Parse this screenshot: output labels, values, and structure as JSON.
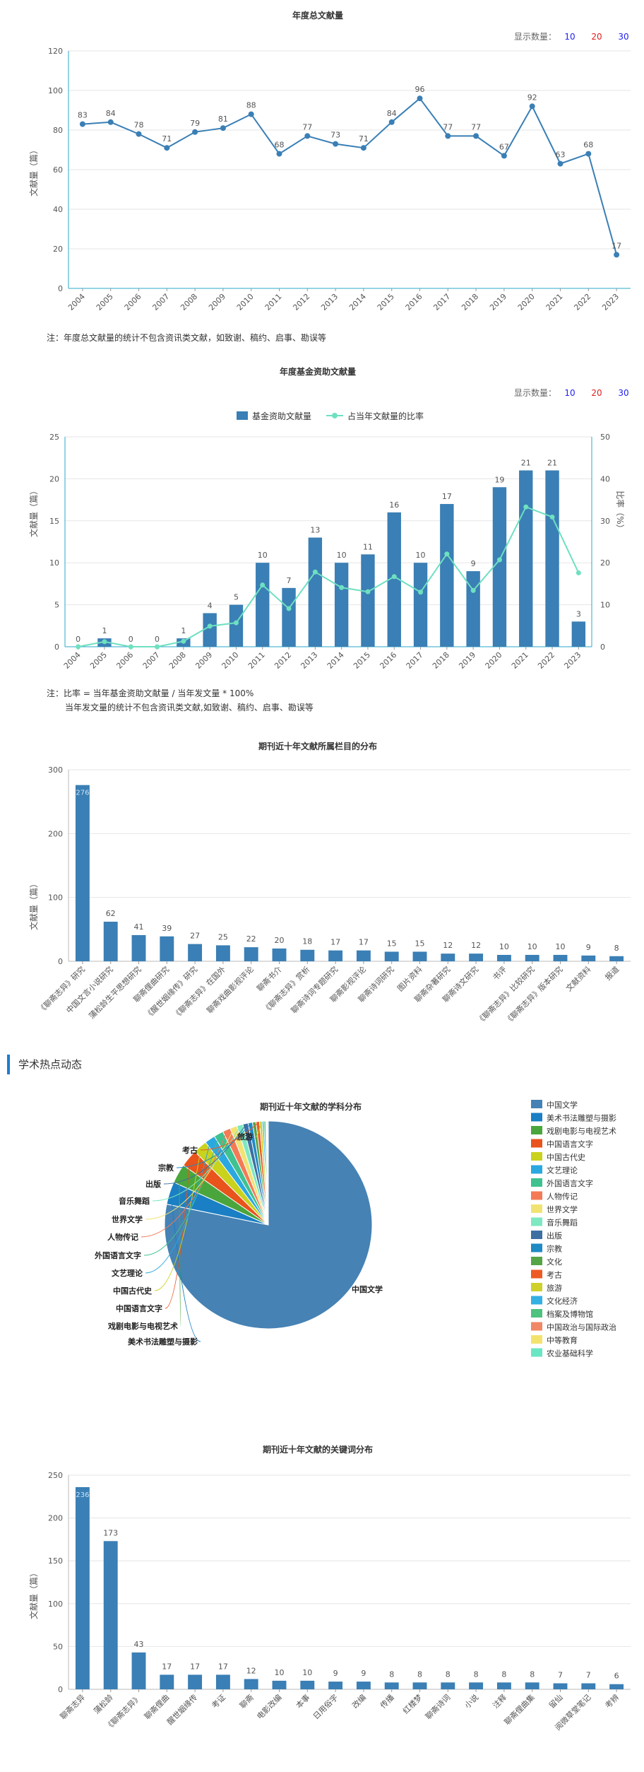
{
  "chart_data": [
    {
      "type": "line",
      "title": "年度总文献量",
      "display_count": {
        "label": "显示数量：",
        "options": [
          "10",
          "20",
          "30"
        ]
      },
      "ylabel": "文献量（篇）",
      "x": [
        "2004",
        "2005",
        "2006",
        "2007",
        "2008",
        "2009",
        "2010",
        "2011",
        "2012",
        "2013",
        "2014",
        "2015",
        "2016",
        "2017",
        "2018",
        "2019",
        "2020",
        "2021",
        "2022",
        "2023"
      ],
      "values": [
        83,
        84,
        78,
        71,
        79,
        81,
        88,
        68,
        77,
        73,
        71,
        84,
        96,
        77,
        77,
        67,
        92,
        63,
        68,
        17
      ],
      "ylim": [
        0,
        120
      ],
      "yticks": [
        "0",
        "20",
        "40",
        "60",
        "80",
        "100",
        "120"
      ],
      "color": "#3a7fb5",
      "note": "注：年度总文献量的统计不包含资讯类文献，如致谢、稿约、启事、勘误等"
    },
    {
      "type": "bar+line",
      "title": "年度基金资助文献量",
      "display_count": {
        "label": "显示数量：",
        "options": [
          "10",
          "20",
          "30"
        ]
      },
      "legend": {
        "bar": "基金资助文献量",
        "line": "占当年文献量的比率"
      },
      "ylabel": "文献量（篇）",
      "y2label": "比率（%）",
      "x": [
        "2004",
        "2005",
        "2006",
        "2007",
        "2008",
        "2009",
        "2010",
        "2011",
        "2012",
        "2013",
        "2014",
        "2015",
        "2016",
        "2017",
        "2018",
        "2019",
        "2020",
        "2021",
        "2022",
        "2023"
      ],
      "bar_values": [
        0,
        1,
        0,
        0,
        1,
        4,
        5,
        10,
        7,
        13,
        10,
        11,
        16,
        10,
        17,
        9,
        19,
        21,
        21,
        3
      ],
      "line_values": [
        0,
        1.2,
        0,
        0,
        1.3,
        4.9,
        5.7,
        14.7,
        9.1,
        17.8,
        14.1,
        13.1,
        16.7,
        13.0,
        22.1,
        13.4,
        20.7,
        33.3,
        30.9,
        17.6
      ],
      "ylim": [
        0,
        25
      ],
      "y2lim": [
        0,
        50
      ],
      "yticks": [
        "0",
        "5",
        "10",
        "15",
        "20",
        "25"
      ],
      "y2ticks": [
        "0",
        "10",
        "20",
        "30",
        "40",
        "50"
      ],
      "bar_color": "#3a7fb5",
      "line_color": "#6ee0c0",
      "note": [
        "注：比率 = 当年基金资助文献量 / 当年发文量 * 100%",
        "当年发文量的统计不包含资讯类文献,如致谢、稿约、启事、勘误等"
      ]
    },
    {
      "type": "bar",
      "title": "期刊近十年文献所属栏目的分布",
      "ylabel": "文献量（篇）",
      "categories": [
        "《聊斋志异》研究",
        "中国文言小说研究",
        "蒲松龄生平思想研究",
        "聊斋俚曲研究",
        "《醒世姻缘传》研究",
        "《聊斋志异》在国外",
        "聊斋戏曲影视评论",
        "聊斋书介",
        "《聊斋志异》赏析",
        "聊斋诗词专题研究",
        "聊斋影视评论",
        "聊斋诗词研究",
        "图片资料",
        "聊斋杂著研究",
        "聊斋诗文研究",
        "书评",
        "《聊斋志异》比较研究",
        "《聊斋志异》版本研究",
        "文献资料",
        "报道"
      ],
      "values": [
        276,
        62,
        41,
        39,
        27,
        25,
        22,
        20,
        18,
        17,
        17,
        15,
        15,
        12,
        12,
        10,
        10,
        10,
        9,
        8
      ],
      "ylim": [
        0,
        300
      ],
      "yticks": [
        "0",
        "100",
        "200",
        "300"
      ],
      "color": "#3a7fb5"
    },
    {
      "type": "pie",
      "title": "期刊近十年文献的学科分布",
      "labels": [
        "中国文学",
        "美术书法雕塑与摄影",
        "戏剧电影与电视艺术",
        "中国语言文字",
        "中国古代史",
        "文艺理论",
        "外国语言文字",
        "人物传记",
        "世界文学",
        "音乐舞蹈",
        "出版",
        "宗教",
        "文化",
        "考古",
        "旅游",
        "文化经济",
        "档案及博物馆",
        "中国政治与国际政治",
        "中等教育",
        "农业基础科学"
      ],
      "values": [
        574,
        26,
        22,
        20,
        16,
        12,
        11,
        9,
        8,
        7,
        6,
        5,
        4,
        4,
        3,
        2,
        2,
        1,
        1,
        1
      ],
      "colors": [
        "#4682b4",
        "#1a7fc4",
        "#4aa63c",
        "#e9531c",
        "#c9d21c",
        "#2ba8e0",
        "#3fc28f",
        "#f47a55",
        "#f1e373",
        "#7de8c2",
        "#3e6fa3",
        "#1f8ac4",
        "#55a546",
        "#ee5a24",
        "#cfd12a",
        "#35b0e2",
        "#4ec27f",
        "#f08866",
        "#f3e36e",
        "#6be6c4"
      ],
      "outside_labels": [
        "中国文学",
        "美术书法雕塑与摄影",
        "戏剧电影与电视艺术",
        "中国语言文字",
        "中国古代史",
        "文艺理论",
        "外国语言文字",
        "人物传记",
        "世界文学",
        "音乐舞蹈",
        "出版",
        "宗教",
        "考古",
        "旅游"
      ]
    },
    {
      "type": "bar",
      "title": "期刊近十年文献的关键词分布",
      "ylabel": "文献量（篇）",
      "categories": [
        "聊斋志异",
        "蒲松龄",
        "《聊斋志异》",
        "聊斋俚曲",
        "醒世姻缘传",
        "考证",
        "聊斋",
        "电影改编",
        "本事",
        "日用俗字",
        "改编",
        "传播",
        "红楼梦",
        "聊斋诗词",
        "小说",
        "注释",
        "聊斋俚曲集",
        "留仙",
        "阅微草堂笔记",
        "考辨"
      ],
      "values": [
        236,
        173,
        43,
        17,
        17,
        17,
        12,
        10,
        10,
        9,
        9,
        8,
        8,
        8,
        8,
        8,
        8,
        7,
        7,
        6
      ],
      "ylim": [
        0,
        250
      ],
      "yticks": [
        "0",
        "50",
        "100",
        "150",
        "200",
        "250"
      ],
      "color": "#3a7fb5"
    }
  ],
  "section_title": "学术热点动态"
}
